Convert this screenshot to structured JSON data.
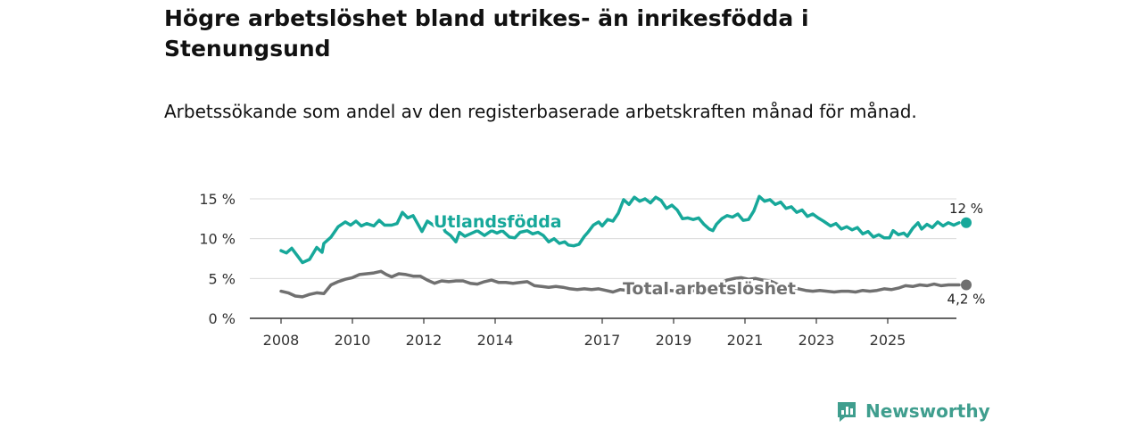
{
  "title": "Högre arbetslöshet bland utrikes- än inrikesfödda i Stenungsund",
  "subtitle": "Arbetssökande som andel av den registerbaserade arbetskraften månad för månad.",
  "brand": "Newsworthy",
  "chart_data": {
    "type": "line",
    "title": "Högre arbetslöshet bland utrikes- än inrikesfödda i Stenungsund",
    "subtitle": "Arbetssökande som andel av den registerbaserade arbetskraften månad för månad.",
    "xlabel": "",
    "ylabel": "",
    "xlim": [
      2008.0,
      2026.3
    ],
    "ylim": [
      0,
      15
    ],
    "grid": true,
    "x_ticks": [
      {
        "value": 2008,
        "label": "2008"
      },
      {
        "value": 2010,
        "label": "2010"
      },
      {
        "value": 2012,
        "label": "2012"
      },
      {
        "value": 2014,
        "label": "2014"
      },
      {
        "value": 2017,
        "label": "2017"
      },
      {
        "value": 2019,
        "label": "2019"
      },
      {
        "value": 2021,
        "label": "2021"
      },
      {
        "value": 2023,
        "label": "2023"
      },
      {
        "value": 2025,
        "label": "2025"
      }
    ],
    "y_ticks": [
      {
        "value": 0,
        "label": "0 %"
      },
      {
        "value": 5,
        "label": "5 %"
      },
      {
        "value": 10,
        "label": "10 %"
      },
      {
        "value": 15,
        "label": "15 %"
      }
    ],
    "series": [
      {
        "name": "Utlandsfödda",
        "color": "#17a89a",
        "end_label": "12 %",
        "points": [
          [
            2008.0,
            8.5
          ],
          [
            2008.15,
            8.2
          ],
          [
            2008.3,
            8.8
          ],
          [
            2008.5,
            7.6
          ],
          [
            2008.6,
            7.0
          ],
          [
            2008.8,
            7.4
          ],
          [
            2009.0,
            8.9
          ],
          [
            2009.15,
            8.3
          ],
          [
            2009.2,
            9.4
          ],
          [
            2009.4,
            10.2
          ],
          [
            2009.6,
            11.5
          ],
          [
            2009.8,
            12.1
          ],
          [
            2009.95,
            11.7
          ],
          [
            2010.1,
            12.2
          ],
          [
            2010.25,
            11.6
          ],
          [
            2010.4,
            11.9
          ],
          [
            2010.6,
            11.6
          ],
          [
            2010.75,
            12.3
          ],
          [
            2010.9,
            11.7
          ],
          [
            2011.1,
            11.7
          ],
          [
            2011.25,
            11.9
          ],
          [
            2011.4,
            13.3
          ],
          [
            2011.55,
            12.6
          ],
          [
            2011.7,
            12.9
          ],
          [
            2011.85,
            11.7
          ],
          [
            2011.95,
            10.9
          ],
          [
            2012.1,
            12.2
          ],
          [
            2012.3,
            11.6
          ],
          [
            2012.5,
            11.9
          ],
          [
            2012.6,
            10.9
          ],
          [
            2012.75,
            10.4
          ],
          [
            2012.9,
            9.6
          ],
          [
            2013.0,
            10.8
          ],
          [
            2013.15,
            10.3
          ],
          [
            2013.3,
            10.6
          ],
          [
            2013.5,
            11.0
          ],
          [
            2013.7,
            10.4
          ],
          [
            2013.9,
            11.0
          ],
          [
            2014.05,
            10.7
          ],
          [
            2014.2,
            11.0
          ],
          [
            2014.4,
            10.2
          ],
          [
            2014.55,
            10.1
          ],
          [
            2014.7,
            10.8
          ],
          [
            2014.9,
            11.0
          ],
          [
            2015.05,
            10.6
          ],
          [
            2015.2,
            10.8
          ],
          [
            2015.35,
            10.4
          ],
          [
            2015.5,
            9.6
          ],
          [
            2015.65,
            10.0
          ],
          [
            2015.8,
            9.4
          ],
          [
            2015.95,
            9.6
          ],
          [
            2016.05,
            9.2
          ],
          [
            2016.2,
            9.1
          ],
          [
            2016.35,
            9.3
          ],
          [
            2016.5,
            10.3
          ],
          [
            2016.6,
            10.8
          ],
          [
            2016.75,
            11.7
          ],
          [
            2016.9,
            12.1
          ],
          [
            2017.0,
            11.6
          ],
          [
            2017.15,
            12.4
          ],
          [
            2017.3,
            12.2
          ],
          [
            2017.45,
            13.2
          ],
          [
            2017.6,
            14.9
          ],
          [
            2017.75,
            14.3
          ],
          [
            2017.9,
            15.2
          ],
          [
            2018.05,
            14.7
          ],
          [
            2018.2,
            15.0
          ],
          [
            2018.35,
            14.5
          ],
          [
            2018.5,
            15.2
          ],
          [
            2018.65,
            14.8
          ],
          [
            2018.8,
            13.8
          ],
          [
            2018.95,
            14.2
          ],
          [
            2019.1,
            13.6
          ],
          [
            2019.25,
            12.5
          ],
          [
            2019.4,
            12.6
          ],
          [
            2019.55,
            12.4
          ],
          [
            2019.7,
            12.6
          ],
          [
            2019.85,
            11.8
          ],
          [
            2020.0,
            11.2
          ],
          [
            2020.1,
            11.0
          ],
          [
            2020.2,
            11.8
          ],
          [
            2020.35,
            12.5
          ],
          [
            2020.5,
            12.9
          ],
          [
            2020.65,
            12.7
          ],
          [
            2020.8,
            13.1
          ],
          [
            2020.95,
            12.3
          ],
          [
            2021.1,
            12.4
          ],
          [
            2021.25,
            13.5
          ],
          [
            2021.4,
            15.3
          ],
          [
            2021.55,
            14.7
          ],
          [
            2021.7,
            14.9
          ],
          [
            2021.85,
            14.3
          ],
          [
            2022.0,
            14.6
          ],
          [
            2022.15,
            13.8
          ],
          [
            2022.3,
            14.0
          ],
          [
            2022.45,
            13.3
          ],
          [
            2022.6,
            13.6
          ],
          [
            2022.75,
            12.8
          ],
          [
            2022.9,
            13.1
          ],
          [
            2023.05,
            12.6
          ],
          [
            2023.2,
            12.2
          ],
          [
            2023.4,
            11.6
          ],
          [
            2023.55,
            11.9
          ],
          [
            2023.7,
            11.2
          ],
          [
            2023.85,
            11.5
          ],
          [
            2024.0,
            11.1
          ],
          [
            2024.15,
            11.4
          ],
          [
            2024.3,
            10.6
          ],
          [
            2024.45,
            10.9
          ],
          [
            2024.6,
            10.2
          ],
          [
            2024.75,
            10.5
          ],
          [
            2024.9,
            10.1
          ],
          [
            2025.05,
            10.1
          ],
          [
            2025.15,
            11.0
          ],
          [
            2025.3,
            10.5
          ],
          [
            2025.45,
            10.7
          ],
          [
            2025.55,
            10.3
          ],
          [
            2025.7,
            11.3
          ],
          [
            2025.85,
            12.0
          ],
          [
            2025.95,
            11.2
          ],
          [
            2026.1,
            11.8
          ],
          [
            2026.25,
            11.4
          ],
          [
            2026.4,
            12.1
          ],
          [
            2026.55,
            11.6
          ],
          [
            2026.7,
            12.0
          ],
          [
            2026.85,
            11.7
          ],
          [
            2027.0,
            12.0
          ]
        ]
      },
      {
        "name": "Total arbetslöshet",
        "color": "#707070",
        "end_label": "4,2 %",
        "points": [
          [
            2008.0,
            3.4
          ],
          [
            2008.2,
            3.2
          ],
          [
            2008.4,
            2.8
          ],
          [
            2008.6,
            2.7
          ],
          [
            2008.8,
            3.0
          ],
          [
            2009.0,
            3.2
          ],
          [
            2009.2,
            3.1
          ],
          [
            2009.4,
            4.2
          ],
          [
            2009.6,
            4.6
          ],
          [
            2009.8,
            4.9
          ],
          [
            2010.0,
            5.1
          ],
          [
            2010.2,
            5.5
          ],
          [
            2010.4,
            5.6
          ],
          [
            2010.6,
            5.7
          ],
          [
            2010.8,
            5.9
          ],
          [
            2010.95,
            5.5
          ],
          [
            2011.1,
            5.2
          ],
          [
            2011.3,
            5.6
          ],
          [
            2011.5,
            5.5
          ],
          [
            2011.7,
            5.3
          ],
          [
            2011.9,
            5.3
          ],
          [
            2012.1,
            4.8
          ],
          [
            2012.3,
            4.4
          ],
          [
            2012.5,
            4.7
          ],
          [
            2012.7,
            4.6
          ],
          [
            2012.9,
            4.7
          ],
          [
            2013.1,
            4.7
          ],
          [
            2013.3,
            4.4
          ],
          [
            2013.5,
            4.3
          ],
          [
            2013.7,
            4.6
          ],
          [
            2013.9,
            4.8
          ],
          [
            2014.1,
            4.5
          ],
          [
            2014.3,
            4.5
          ],
          [
            2014.5,
            4.4
          ],
          [
            2014.7,
            4.5
          ],
          [
            2014.9,
            4.6
          ],
          [
            2015.1,
            4.1
          ],
          [
            2015.3,
            4.0
          ],
          [
            2015.5,
            3.9
          ],
          [
            2015.7,
            4.0
          ],
          [
            2015.9,
            3.9
          ],
          [
            2016.1,
            3.7
          ],
          [
            2016.3,
            3.6
          ],
          [
            2016.5,
            3.7
          ],
          [
            2016.7,
            3.6
          ],
          [
            2016.9,
            3.7
          ],
          [
            2017.1,
            3.5
          ],
          [
            2017.3,
            3.3
          ],
          [
            2017.5,
            3.6
          ],
          [
            2017.7,
            3.5
          ],
          [
            2017.9,
            3.7
          ],
          [
            2018.1,
            3.6
          ],
          [
            2018.3,
            3.5
          ],
          [
            2018.5,
            3.6
          ],
          [
            2018.7,
            3.4
          ],
          [
            2018.9,
            3.5
          ],
          [
            2019.1,
            3.4
          ],
          [
            2019.3,
            3.5
          ],
          [
            2019.5,
            3.4
          ],
          [
            2019.7,
            3.6
          ],
          [
            2019.9,
            3.7
          ],
          [
            2020.1,
            4.0
          ],
          [
            2020.3,
            4.4
          ],
          [
            2020.5,
            4.8
          ],
          [
            2020.7,
            5.0
          ],
          [
            2020.9,
            5.1
          ],
          [
            2021.1,
            4.9
          ],
          [
            2021.3,
            5.0
          ],
          [
            2021.5,
            4.8
          ],
          [
            2021.7,
            4.7
          ],
          [
            2021.9,
            4.3
          ],
          [
            2022.1,
            4.0
          ],
          [
            2022.3,
            3.8
          ],
          [
            2022.5,
            3.7
          ],
          [
            2022.7,
            3.5
          ],
          [
            2022.9,
            3.4
          ],
          [
            2023.1,
            3.5
          ],
          [
            2023.3,
            3.4
          ],
          [
            2023.5,
            3.3
          ],
          [
            2023.7,
            3.4
          ],
          [
            2023.9,
            3.4
          ],
          [
            2024.1,
            3.3
          ],
          [
            2024.3,
            3.5
          ],
          [
            2024.5,
            3.4
          ],
          [
            2024.7,
            3.5
          ],
          [
            2024.9,
            3.7
          ],
          [
            2025.1,
            3.6
          ],
          [
            2025.3,
            3.8
          ],
          [
            2025.5,
            4.1
          ],
          [
            2025.7,
            4.0
          ],
          [
            2025.9,
            4.2
          ],
          [
            2026.1,
            4.1
          ],
          [
            2026.3,
            4.3
          ],
          [
            2026.5,
            4.1
          ],
          [
            2026.7,
            4.2
          ],
          [
            2027.0,
            4.2
          ]
        ]
      }
    ]
  }
}
